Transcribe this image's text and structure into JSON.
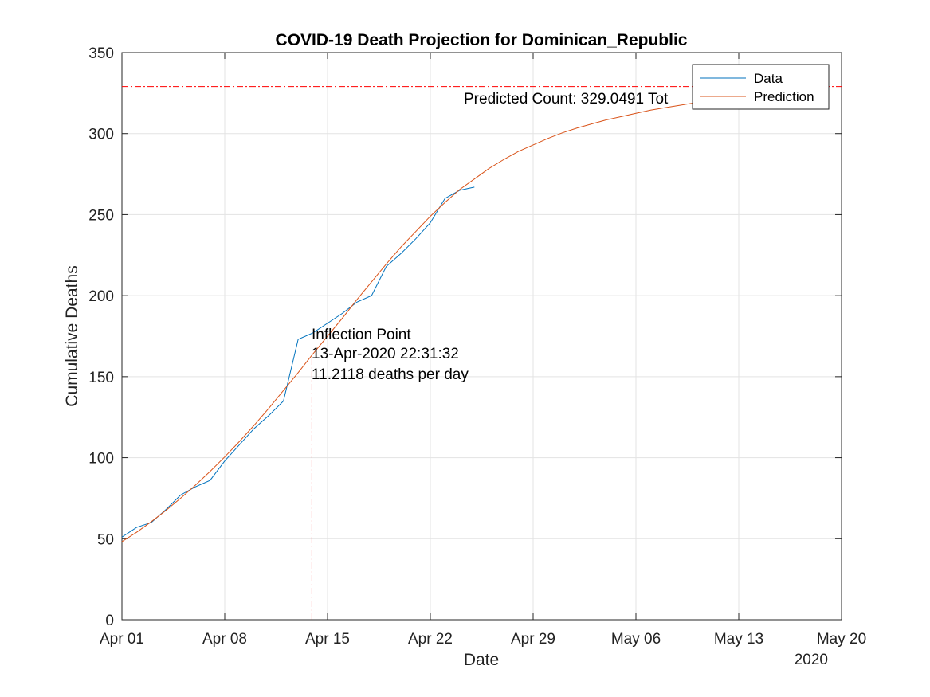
{
  "chart_data": {
    "type": "line",
    "title": "COVID-19 Death Projection for Dominican_Republic",
    "xlabel": "Date",
    "ylabel": "Cumulative Deaths",
    "year_label": "2020",
    "x_ticks": [
      "Apr 01",
      "Apr 08",
      "Apr 15",
      "Apr 22",
      "Apr 29",
      "May 06",
      "May 13",
      "May 20"
    ],
    "y_ticks": [
      "0",
      "50",
      "100",
      "150",
      "200",
      "250",
      "300",
      "350"
    ],
    "xlim": [
      "2020-04-01",
      "2020-05-20"
    ],
    "ylim": [
      0,
      350
    ],
    "grid": true,
    "legend_position": "top-right",
    "series": [
      {
        "name": "Data",
        "color": "#0072bd",
        "points": [
          [
            "2020-04-01",
            51
          ],
          [
            "2020-04-02",
            57
          ],
          [
            "2020-04-03",
            60
          ],
          [
            "2020-04-04",
            68
          ],
          [
            "2020-04-05",
            77
          ],
          [
            "2020-04-06",
            82
          ],
          [
            "2020-04-07",
            86
          ],
          [
            "2020-04-08",
            98
          ],
          [
            "2020-04-09",
            108
          ],
          [
            "2020-04-10",
            118
          ],
          [
            "2020-04-11",
            126
          ],
          [
            "2020-04-12",
            135
          ],
          [
            "2020-04-13",
            173
          ],
          [
            "2020-04-14",
            177
          ],
          [
            "2020-04-15",
            183
          ],
          [
            "2020-04-16",
            189
          ],
          [
            "2020-04-17",
            196
          ],
          [
            "2020-04-18",
            200
          ],
          [
            "2020-04-19",
            218
          ],
          [
            "2020-04-20",
            226
          ],
          [
            "2020-04-21",
            235
          ],
          [
            "2020-04-22",
            245
          ],
          [
            "2020-04-23",
            260
          ],
          [
            "2020-04-24",
            265
          ],
          [
            "2020-04-25",
            267
          ]
        ]
      },
      {
        "name": "Prediction",
        "color": "#d95319",
        "points": [
          [
            "2020-04-01",
            48.2
          ],
          [
            "2020-04-02",
            54.0
          ],
          [
            "2020-04-03",
            60.5
          ],
          [
            "2020-04-04",
            67.5
          ],
          [
            "2020-04-05",
            75.0
          ],
          [
            "2020-04-06",
            83.0
          ],
          [
            "2020-04-07",
            91.5
          ],
          [
            "2020-04-08",
            100.5
          ],
          [
            "2020-04-09",
            110.0
          ],
          [
            "2020-04-10",
            120.0
          ],
          [
            "2020-04-11",
            130.5
          ],
          [
            "2020-04-12",
            141.5
          ],
          [
            "2020-04-13",
            152.5
          ],
          [
            "2020-04-14",
            164.0
          ],
          [
            "2020-04-15",
            175.0
          ],
          [
            "2020-04-16",
            186.0
          ],
          [
            "2020-04-17",
            197.5
          ],
          [
            "2020-04-18",
            208.5
          ],
          [
            "2020-04-19",
            219.5
          ],
          [
            "2020-04-20",
            230.0
          ],
          [
            "2020-04-21",
            239.5
          ],
          [
            "2020-04-22",
            249.0
          ],
          [
            "2020-04-23",
            257.5
          ],
          [
            "2020-04-24",
            265.5
          ],
          [
            "2020-04-25",
            272.0
          ],
          [
            "2020-04-26",
            278.5
          ],
          [
            "2020-04-27",
            284.0
          ],
          [
            "2020-04-28",
            289.0
          ],
          [
            "2020-04-29",
            293.0
          ],
          [
            "2020-04-30",
            297.0
          ],
          [
            "2020-05-01",
            300.5
          ],
          [
            "2020-05-02",
            303.5
          ],
          [
            "2020-05-03",
            306.0
          ],
          [
            "2020-05-04",
            308.5
          ],
          [
            "2020-05-05",
            310.5
          ],
          [
            "2020-05-06",
            312.5
          ],
          [
            "2020-05-07",
            314.5
          ],
          [
            "2020-05-08",
            316.0
          ],
          [
            "2020-05-09",
            317.5
          ],
          [
            "2020-05-10",
            319.0
          ],
          [
            "2020-05-11",
            320.0
          ],
          [
            "2020-05-12",
            321.0
          ],
          [
            "2020-05-13",
            322.0
          ]
        ]
      }
    ],
    "annotations": {
      "predicted_count_value": 329.0491,
      "predicted_count_label": "Predicted Count: 329.0491 Tot",
      "inflection_date": "2020-04-13T22:31:32",
      "inflection_lines": [
        "Inflection Point",
        "13-Apr-2020 22:31:32",
        "11.2118 deaths per day"
      ],
      "inflection_y_top": 162,
      "ref_line_color": "#ff0000"
    }
  }
}
